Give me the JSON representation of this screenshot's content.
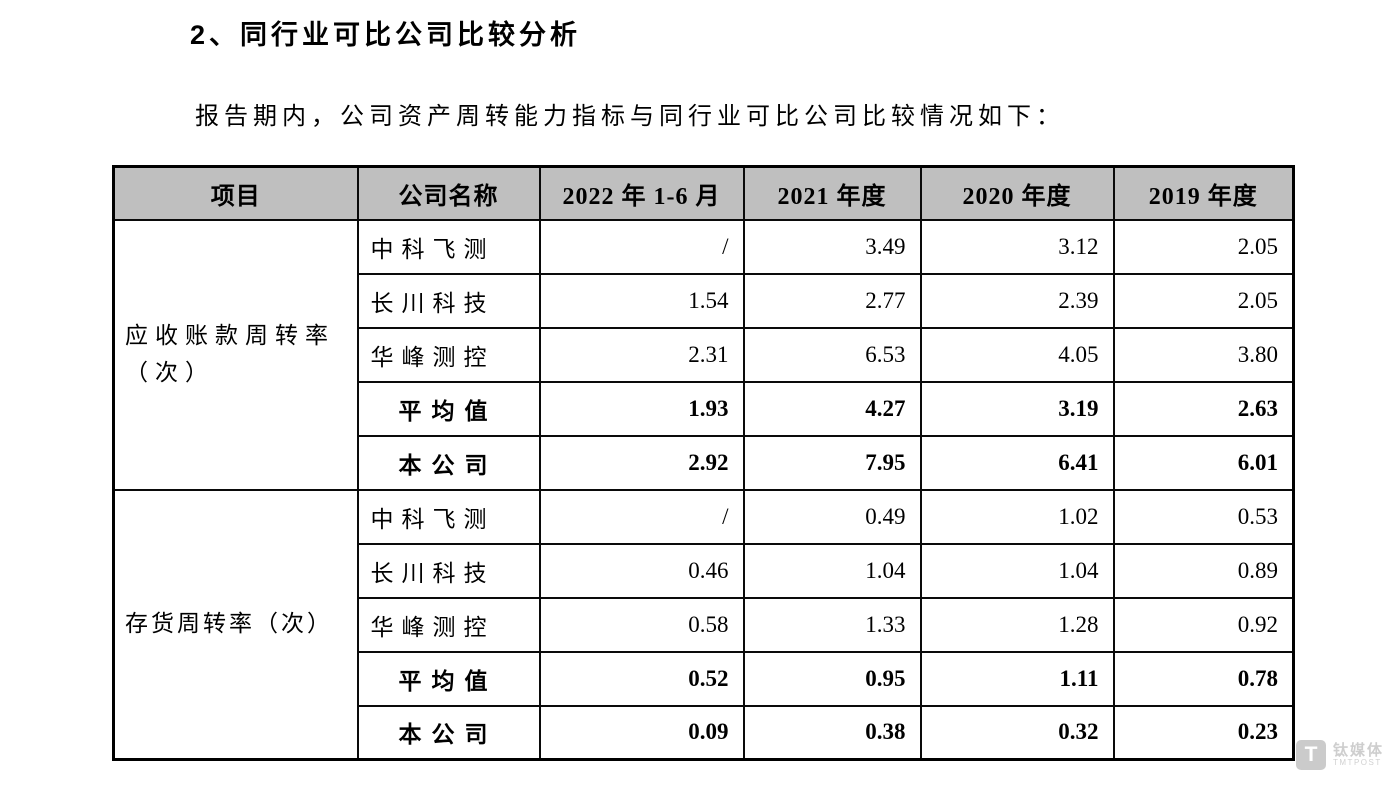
{
  "page": {
    "heading": "2、同行业可比公司比较分析",
    "intro": "报告期内，公司资产周转能力指标与同行业可比公司比较情况如下："
  },
  "table": {
    "headers": [
      "项目",
      "公司名称",
      "2022 年 1-6 月",
      "2021 年度",
      "2020 年度",
      "2019 年度"
    ],
    "groups": [
      {
        "label": "应收账款周转率（次）",
        "rows": [
          {
            "name": "中科飞测",
            "bold": false,
            "values": [
              "/",
              "3.49",
              "3.12",
              "2.05"
            ]
          },
          {
            "name": "长川科技",
            "bold": false,
            "values": [
              "1.54",
              "2.77",
              "2.39",
              "2.05"
            ]
          },
          {
            "name": "华峰测控",
            "bold": false,
            "values": [
              "2.31",
              "6.53",
              "4.05",
              "3.80"
            ]
          },
          {
            "name": "平均值",
            "bold": true,
            "values": [
              "1.93",
              "4.27",
              "3.19",
              "2.63"
            ]
          },
          {
            "name": "本公司",
            "bold": true,
            "values": [
              "2.92",
              "7.95",
              "6.41",
              "6.01"
            ]
          }
        ]
      },
      {
        "label": "存货周转率（次）",
        "rows": [
          {
            "name": "中科飞测",
            "bold": false,
            "values": [
              "/",
              "0.49",
              "1.02",
              "0.53"
            ]
          },
          {
            "name": "长川科技",
            "bold": false,
            "values": [
              "0.46",
              "1.04",
              "1.04",
              "0.89"
            ]
          },
          {
            "name": "华峰测控",
            "bold": false,
            "values": [
              "0.58",
              "1.33",
              "1.28",
              "0.92"
            ]
          },
          {
            "name": "平均值",
            "bold": true,
            "values": [
              "0.52",
              "0.95",
              "1.11",
              "0.78"
            ]
          },
          {
            "name": "本公司",
            "bold": true,
            "values": [
              "0.09",
              "0.38",
              "0.32",
              "0.23"
            ]
          }
        ]
      }
    ]
  },
  "watermark": {
    "icon_letter": "T",
    "cn": "钛媒体",
    "en": "TMTPOST"
  },
  "colors": {
    "header_bg": "#bfbfbf",
    "border": "#000000",
    "text": "#000000",
    "watermark": "#c9c9c9"
  }
}
